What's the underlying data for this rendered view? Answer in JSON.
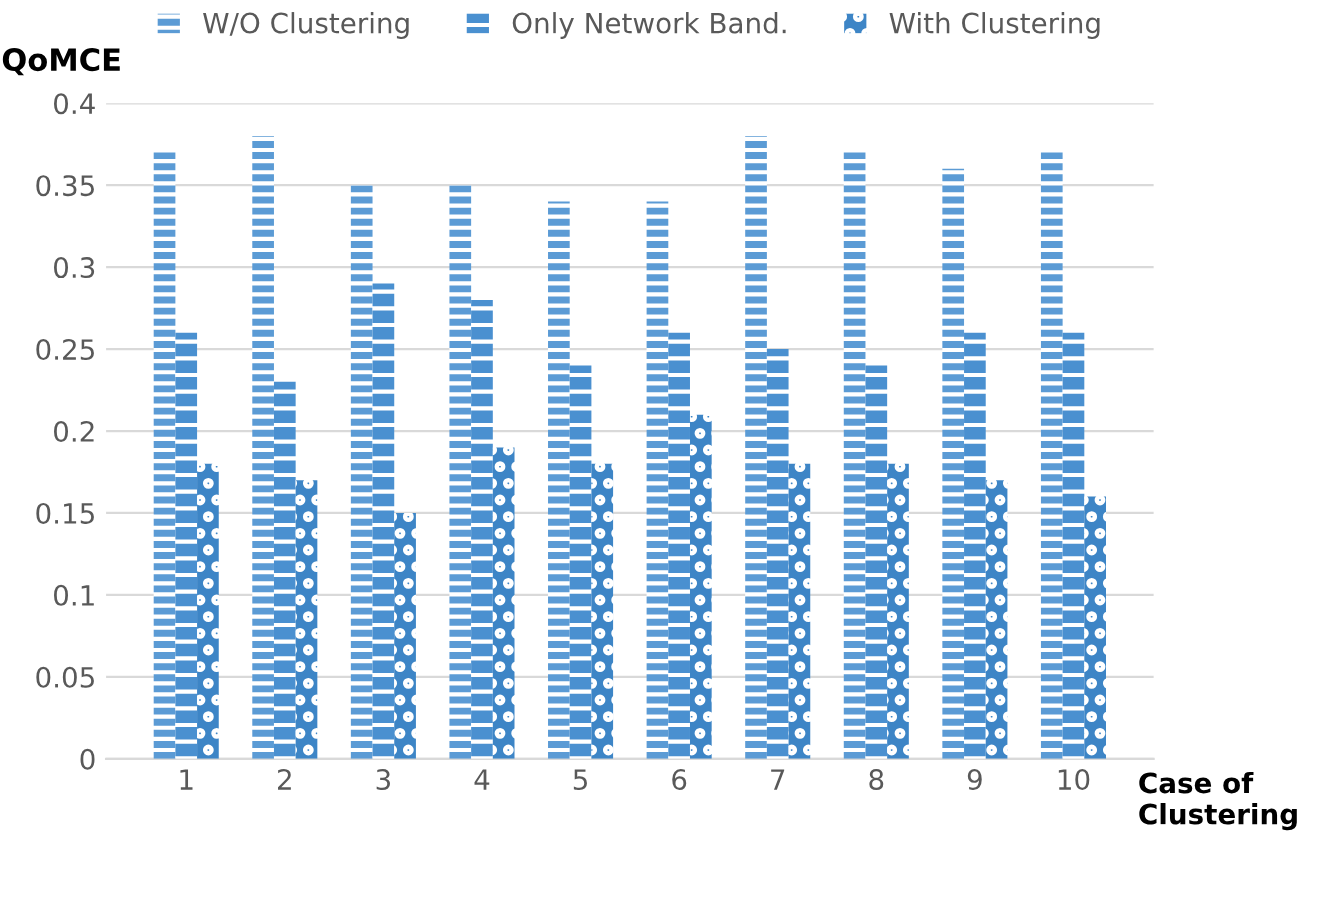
{
  "chart_data": {
    "type": "bar",
    "ylabel": "QoMCE",
    "xlabel": "Case of\nClustering",
    "categories": [
      "1",
      "2",
      "3",
      "4",
      "5",
      "6",
      "7",
      "8",
      "9",
      "10"
    ],
    "series": [
      {
        "name": "W/O Clustering",
        "color": "#5b9bd5",
        "values": [
          0.37,
          0.38,
          0.35,
          0.35,
          0.34,
          0.34,
          0.38,
          0.37,
          0.36,
          0.37
        ]
      },
      {
        "name": "Only Network Band.",
        "color": "#4a90d0",
        "values": [
          0.26,
          0.23,
          0.29,
          0.28,
          0.24,
          0.26,
          0.25,
          0.24,
          0.26,
          0.26
        ]
      },
      {
        "name": "With Clustering",
        "color": "#3d85c6",
        "values": [
          0.18,
          0.17,
          0.15,
          0.19,
          0.18,
          0.21,
          0.18,
          0.18,
          0.17,
          0.16
        ]
      }
    ],
    "ylim": [
      0,
      0.4
    ],
    "yticks": [
      0,
      0.05,
      0.1,
      0.15,
      0.2,
      0.25,
      0.3,
      0.35,
      0.4
    ],
    "grid": "y",
    "legend": "top"
  }
}
